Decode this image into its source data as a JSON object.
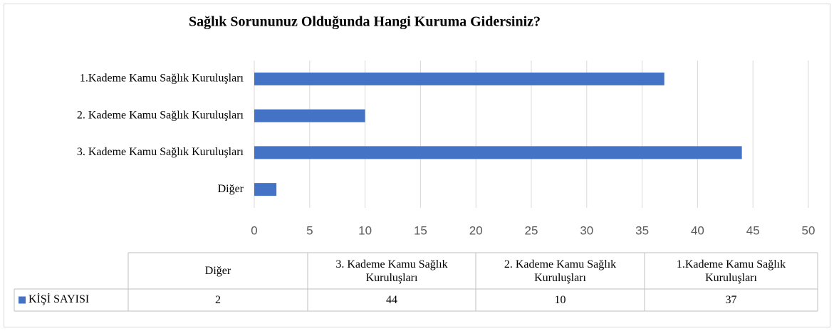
{
  "chart_data": {
    "type": "bar",
    "title": "Sağlık Sorununuz Olduğunda Hangi Kuruma Gidersiniz?",
    "categories": [
      "Diğer",
      "3. Kademe Kamu Sağlık Kuruluşları",
      "2. Kademe Kamu Sağlık Kuruluşları",
      "1.Kademe Kamu Sağlık Kuruluşları"
    ],
    "series": [
      {
        "name": "KİŞİ SAYISI",
        "color": "#4472c4",
        "values": [
          2,
          44,
          10,
          37
        ]
      }
    ],
    "xlim": [
      0,
      50
    ],
    "xticks": [
      0,
      5,
      10,
      15,
      20,
      25,
      30,
      35,
      40,
      45,
      50
    ],
    "grid": true
  }
}
